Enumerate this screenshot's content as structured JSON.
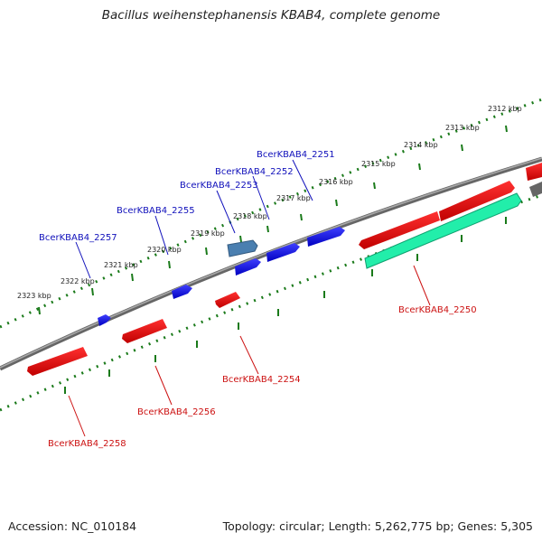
{
  "title": "Bacillus weihenstephanensis KBAB4, complete genome",
  "footer": {
    "accession": "Accession: NC_010184",
    "summary": "Topology: circular; Length: 5,262,775 bp; Genes: 5,305"
  },
  "colors": {
    "forward_gene": "#1010ee",
    "forward_gene_selected": "#4a7fb0",
    "reverse_gene": "#ee1111",
    "reverse_gene_selected": "#22eeaa",
    "backbone": "#808080",
    "tick": "#1a7a1a",
    "forward_label": "#1010bb",
    "reverse_label": "#cc1111"
  },
  "outer_ticks": [
    "2312 kbp",
    "2313 kbp",
    "2314 kbp",
    "2315 kbp",
    "2316 kbp",
    "2317 kbp",
    "2318 kbp",
    "2319 kbp",
    "2320 kbp",
    "2321 kbp",
    "2322 kbp",
    "2323 kbp"
  ],
  "forward_genes": [
    "BcerKBAB4_2251",
    "BcerKBAB4_2252",
    "BcerKBAB4_2253",
    "BcerKBAB4_2255",
    "BcerKBAB4_2257"
  ],
  "reverse_genes": [
    "BcerKBAB4_2250",
    "BcerKBAB4_2254",
    "BcerKBAB4_2256",
    "BcerKBAB4_2258"
  ]
}
